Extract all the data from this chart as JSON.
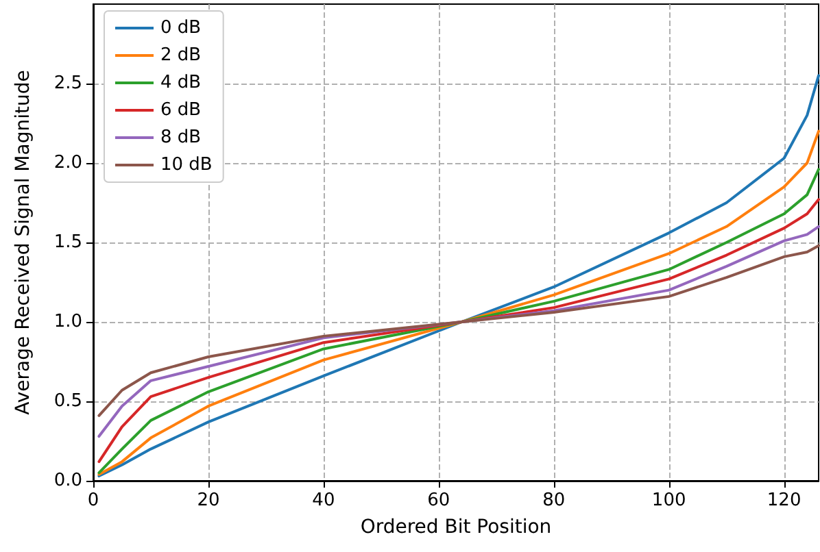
{
  "chart_data": {
    "type": "line",
    "xlabel": "Ordered Bit Position",
    "ylabel": "Average Received Signal Magnitude",
    "x": [
      1,
      5,
      10,
      20,
      40,
      64,
      80,
      100,
      110,
      120,
      124,
      126
    ],
    "series": [
      {
        "name": "0 dB",
        "color": "#1f77b4",
        "values": [
          0.03,
          0.1,
          0.2,
          0.37,
          0.66,
          1.0,
          1.22,
          1.56,
          1.75,
          2.03,
          2.3,
          2.55
        ]
      },
      {
        "name": "2 dB",
        "color": "#ff7f0e",
        "values": [
          0.04,
          0.12,
          0.27,
          0.47,
          0.76,
          1.0,
          1.17,
          1.43,
          1.6,
          1.85,
          2.0,
          2.2
        ]
      },
      {
        "name": "4 dB",
        "color": "#2ca02c",
        "values": [
          0.05,
          0.2,
          0.38,
          0.56,
          0.83,
          1.0,
          1.13,
          1.33,
          1.5,
          1.68,
          1.8,
          1.96
        ]
      },
      {
        "name": "6 dB",
        "color": "#d62728",
        "values": [
          0.12,
          0.34,
          0.53,
          0.65,
          0.87,
          1.0,
          1.09,
          1.27,
          1.42,
          1.59,
          1.68,
          1.77
        ]
      },
      {
        "name": "8 dB",
        "color": "#9467bd",
        "values": [
          0.28,
          0.47,
          0.63,
          0.72,
          0.9,
          1.0,
          1.07,
          1.2,
          1.35,
          1.51,
          1.55,
          1.6
        ]
      },
      {
        "name": "10 dB",
        "color": "#8c564b",
        "values": [
          0.41,
          0.57,
          0.68,
          0.78,
          0.91,
          1.0,
          1.06,
          1.16,
          1.28,
          1.41,
          1.44,
          1.48
        ]
      }
    ],
    "xlim": [
      0,
      126
    ],
    "xticks": [
      0,
      20,
      40,
      60,
      80,
      100,
      120
    ],
    "ylim": [
      0,
      3
    ],
    "yticks": [
      {
        "value": 0,
        "label": "0.0"
      },
      0.5,
      {
        "value": 1,
        "label": "1.0"
      },
      1.5,
      {
        "value": 2,
        "label": "2.0"
      },
      2.5
    ],
    "grid": true,
    "legend": "top left",
    "line_style": "solid",
    "marker": "none"
  }
}
